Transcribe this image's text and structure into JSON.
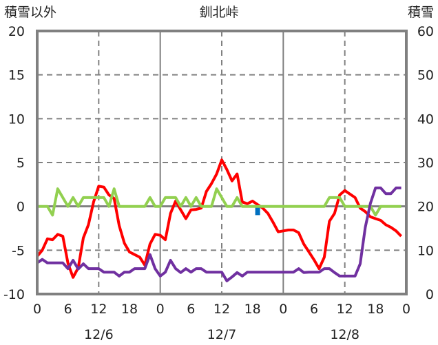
{
  "chart_data": {
    "type": "line",
    "title": "釧北峠",
    "left_axis_title": "積雪以外",
    "right_axis_title": "積雪",
    "ylim_left": [
      -10,
      20
    ],
    "ylim_right": [
      0,
      60
    ],
    "yticks_left": [
      "20",
      "15",
      "10",
      "5",
      "0",
      "-5",
      "-10"
    ],
    "yticks_right": [
      "60",
      "50",
      "40",
      "30",
      "20",
      "10",
      "0"
    ],
    "x_unit": "hours",
    "xlim": [
      0,
      72
    ],
    "xtick_labels": [
      "0",
      "6",
      "12",
      "18",
      "0",
      "6",
      "12",
      "18",
      "0",
      "6",
      "12",
      "18",
      "0"
    ],
    "date_labels": [
      "12/6",
      "12/7",
      "12/8"
    ],
    "grid": true,
    "colors": {
      "temperature": "#ff0000",
      "snow_depth": "#7030a0",
      "other": "#92d050",
      "bar": "#0070c0",
      "axis": "#808080"
    },
    "series": [
      {
        "name": "red",
        "axis": "left",
        "color": "#ff0000",
        "values": [
          -5.7,
          -5,
          -3.7,
          -3.8,
          -3.2,
          -3.4,
          -6.5,
          -8.1,
          -7,
          -3.6,
          -2.1,
          0.5,
          2.3,
          2.2,
          1.3,
          0.9,
          -2.2,
          -4.2,
          -5.2,
          -5.5,
          -5.8,
          -6.7,
          -4.3,
          -3.2,
          -3.3,
          -3.8,
          -0.8,
          0.6,
          -0.4,
          -1.4,
          -0.4,
          -0.35,
          -0.2,
          1.7,
          2.6,
          3.7,
          5.3,
          4.2,
          2.9,
          3.7,
          0.5,
          0.3,
          0.6,
          0.2,
          -0.2,
          -0.8,
          -1.8,
          -2.9,
          -2.8,
          -2.7,
          -2.7,
          -3.0,
          -4.3,
          -5.2,
          -6.1,
          -7.1,
          -5.8,
          -1.7,
          -0.8,
          1.3,
          1.8,
          1.4,
          1.0,
          -0.2,
          -0.6,
          -1.2,
          -1.4,
          -1.6,
          -2.1,
          -2.4,
          -2.8,
          -3.4
        ]
      },
      {
        "name": "green",
        "axis": "left",
        "color": "#92d050",
        "values": [
          0,
          0,
          0,
          -1,
          2,
          1,
          0,
          1,
          0,
          1,
          1,
          1,
          1,
          1,
          0,
          2,
          0,
          0,
          0,
          0,
          0,
          0,
          1,
          0,
          0,
          1,
          1,
          1,
          0,
          1,
          0,
          1,
          0,
          0,
          0,
          2,
          1,
          0,
          0,
          1,
          0,
          0,
          0,
          0,
          0,
          0,
          0,
          0,
          0,
          0,
          0,
          0,
          0,
          0,
          0,
          0,
          0,
          1,
          1,
          1,
          0,
          0,
          0,
          0,
          0,
          0,
          -1,
          0,
          0,
          0,
          0,
          0
        ]
      },
      {
        "name": "purple",
        "axis": "right",
        "color": "#7030a0",
        "values": [
          7.1,
          7.9,
          7.1,
          7.1,
          7.1,
          7.1,
          5.8,
          7.7,
          5.7,
          6.9,
          5.8,
          5.8,
          5.8,
          5,
          5,
          5,
          4.1,
          5,
          5,
          5.8,
          5.8,
          5.8,
          9,
          5.8,
          4.1,
          5,
          7.7,
          5.8,
          4.9,
          5.8,
          5,
          5.8,
          5.8,
          5,
          5,
          5,
          5,
          3,
          3.9,
          4.9,
          4.1,
          5,
          5,
          5,
          5,
          5,
          5,
          5,
          5,
          5,
          5,
          5.8,
          4.9,
          5,
          5,
          5,
          5.8,
          5.8,
          4.9,
          4.1,
          4.1,
          4.1,
          4.1,
          6.9,
          15.2,
          20.7,
          24.2,
          24.2,
          22.9,
          22.9,
          24.2,
          24.2
        ]
      }
    ],
    "bars": [
      {
        "name": "blue",
        "axis": "left",
        "color": "#0070c0",
        "x": 43,
        "value": -1
      }
    ]
  }
}
